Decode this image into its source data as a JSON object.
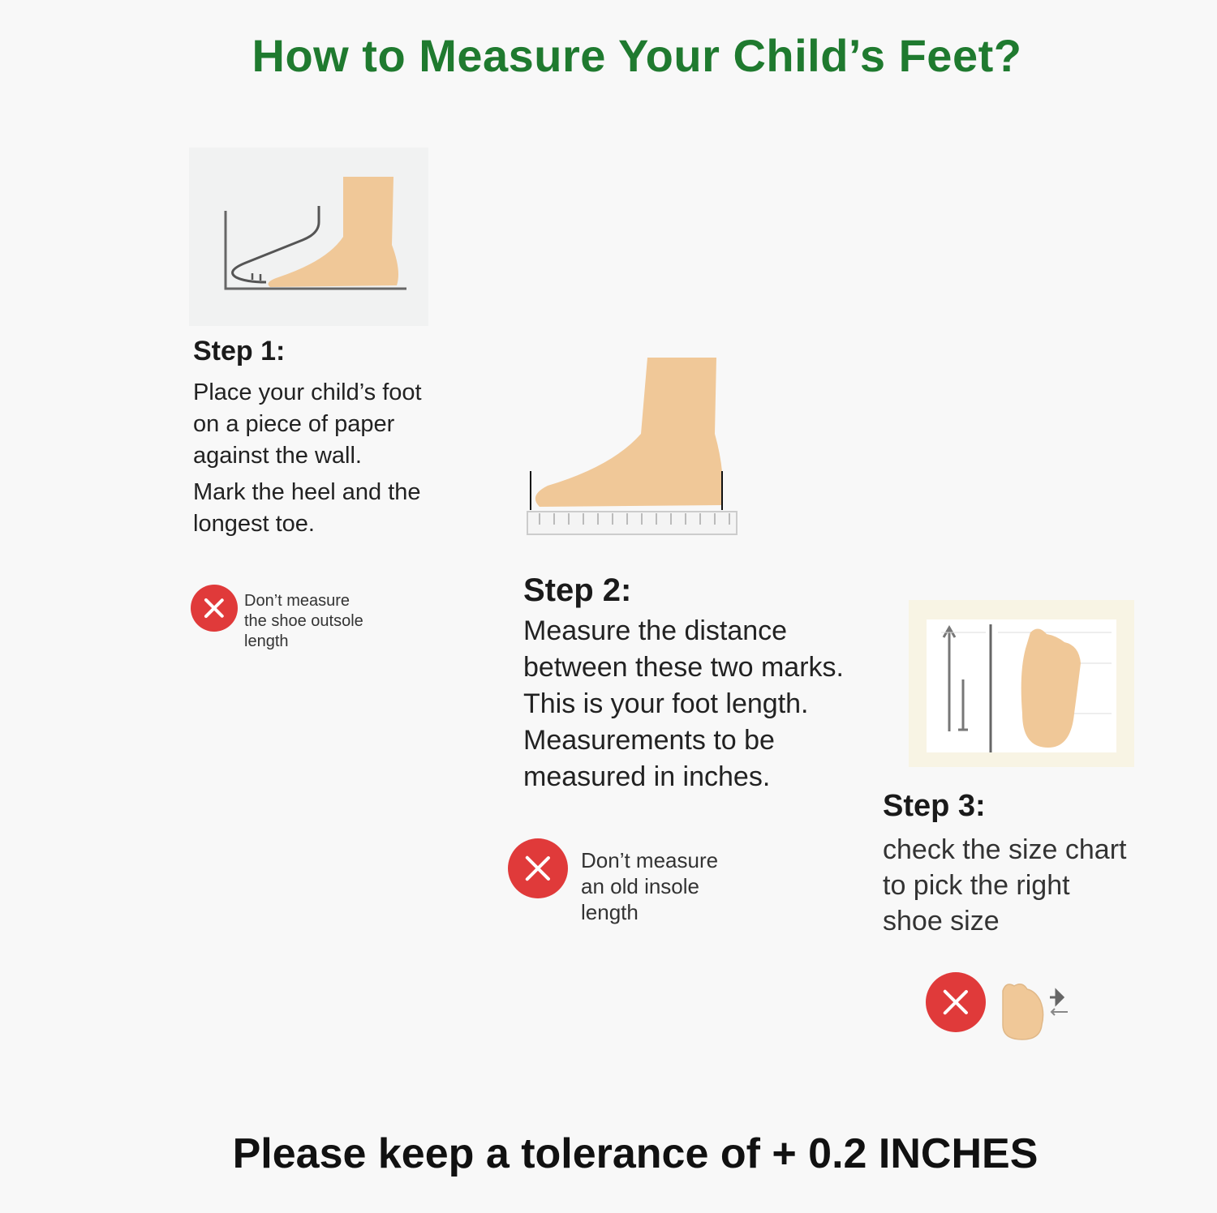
{
  "title": "How to Measure Your Child’s Feet?",
  "colors": {
    "title": "#1f7a2f",
    "warning": "#e03a3a",
    "skin": "#f0c898",
    "background": "#f8f8f8"
  },
  "step1": {
    "heading": "Step 1:",
    "lines": [
      "Place your child’s foot",
      "on a piece of paper",
      "against the wall.",
      "Mark the heel and the",
      "longest toe."
    ],
    "warning": {
      "icon": "x-circle-icon",
      "lines": [
        "Don’t measure",
        "the shoe outsole",
        "length"
      ]
    }
  },
  "step2": {
    "heading": "Step 2:",
    "lines": [
      "Measure the distance",
      "between these two marks.",
      "This is your foot length.",
      "Measurements to be",
      "measured in inches."
    ],
    "warning": {
      "icon": "x-circle-icon",
      "lines": [
        "Don’t measure",
        "an old insole",
        "length"
      ]
    }
  },
  "step3": {
    "heading": "Step 3:",
    "lines": [
      "check the size chart",
      "to pick the right",
      "shoe size"
    ],
    "warning": {
      "icon": "x-circle-icon"
    }
  },
  "footer": "Please keep a tolerance of + 0.2 INCHES"
}
